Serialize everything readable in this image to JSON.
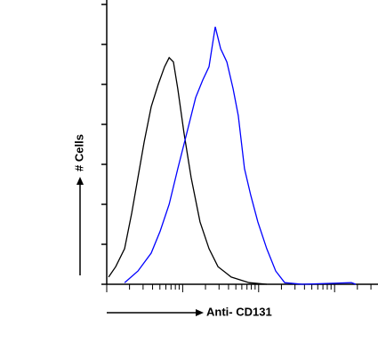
{
  "chart_data": {
    "type": "line",
    "xlabel": "Anti- CD131",
    "ylabel": "# Cells",
    "xlim": [
      0,
      100
    ],
    "ylim": [
      0,
      7
    ],
    "yticks": [
      0,
      1,
      2,
      3,
      4,
      5,
      6,
      7
    ],
    "xticks": [
      0,
      8.4,
      13.4,
      16.9,
      19.6,
      21.8,
      23.7,
      25.3,
      26.7,
      28,
      36.4,
      41.4,
      44.9,
      47.6,
      49.8,
      51.7,
      53.3,
      54.7,
      56,
      64.4,
      69.4,
      72.9,
      75.6,
      77.8,
      79.7,
      81.3,
      82.7,
      84,
      92.4,
      97.4
    ],
    "series": [
      {
        "color": "#000000",
        "x": [
          0.7,
          3.3,
          6.6,
          9.2,
          11.5,
          13.8,
          16.4,
          19.0,
          21.3,
          23.0,
          24.6,
          26.2,
          28.5,
          31.1,
          34.4,
          37.7,
          41.0,
          45.9,
          52.5,
          59.0
        ],
        "values": [
          0.18,
          0.44,
          0.89,
          1.78,
          2.67,
          3.56,
          4.44,
          5.0,
          5.44,
          5.67,
          5.56,
          4.89,
          3.78,
          2.67,
          1.56,
          0.89,
          0.44,
          0.18,
          0.04,
          0
        ]
      },
      {
        "color": "#0000ff",
        "x": [
          6.6,
          11.5,
          16.4,
          19.7,
          23.0,
          26.2,
          29.5,
          32.8,
          35.4,
          37.7,
          40.0,
          42.0,
          44.3,
          46.6,
          48.5,
          50.8,
          53.1,
          55.7,
          59.0,
          62.3,
          65.6,
          72.1,
          90.2,
          91.8
        ],
        "values": [
          0.04,
          0.33,
          0.78,
          1.33,
          2.0,
          2.89,
          3.78,
          4.67,
          5.11,
          5.44,
          6.44,
          5.89,
          5.56,
          4.89,
          4.22,
          2.89,
          2.22,
          1.56,
          0.89,
          0.33,
          0.04,
          0,
          0.04,
          0
        ]
      }
    ]
  }
}
